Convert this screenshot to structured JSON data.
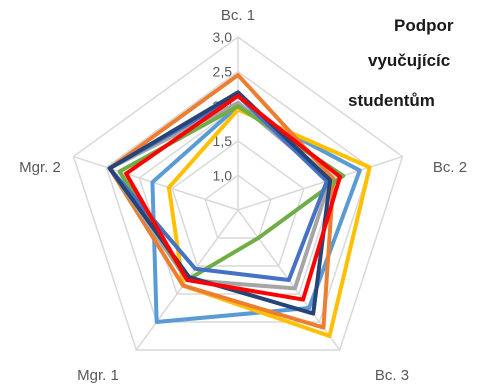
{
  "chart_data": {
    "type": "radar",
    "title_lines": [
      "Podpor",
      "vyučujícíc",
      "studentům"
    ],
    "axes": [
      "Bc. 1",
      "Bc. 2",
      "Bc. 3",
      "Mgr. 1",
      "Mgr. 2"
    ],
    "rlim": [
      0.5,
      3.0
    ],
    "ticks": [
      "1,0",
      "1,5",
      "2,0",
      "2,5",
      "3,0"
    ],
    "tick_values": [
      1.0,
      1.5,
      2.0,
      2.5,
      3.0
    ],
    "grid": true,
    "legend": "none",
    "series": [
      {
        "color": "#5b9bd5",
        "values": [
          2.0,
          2.35,
          2.25,
          2.5,
          1.8
        ]
      },
      {
        "color": "#ffc000",
        "values": [
          1.95,
          2.5,
          2.75,
          1.85,
          1.55
        ]
      },
      {
        "color": "#ed7d31",
        "values": [
          2.45,
          1.95,
          2.6,
          1.85,
          2.45
        ]
      },
      {
        "color": "#a5a5a5",
        "values": [
          2.05,
          1.9,
          1.9,
          1.75,
          2.45
        ]
      },
      {
        "color": "#70ad47",
        "values": [
          2.0,
          2.1,
          1.0,
          1.75,
          2.3
        ]
      },
      {
        "color": "#4472c4",
        "values": [
          2.15,
          1.85,
          1.75,
          1.55,
          2.45
        ]
      },
      {
        "color": "#264478",
        "values": [
          2.2,
          1.9,
          2.35,
          1.7,
          2.45
        ]
      },
      {
        "color": "#ff0000",
        "values": [
          2.15,
          2.05,
          2.1,
          1.75,
          2.2
        ]
      }
    ]
  }
}
